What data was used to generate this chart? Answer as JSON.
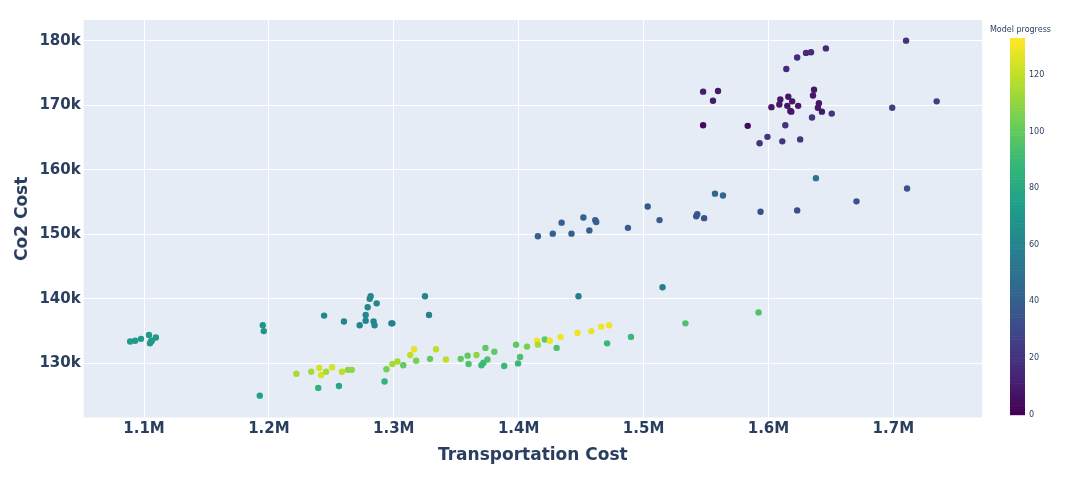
{
  "chart_data": {
    "type": "scatter",
    "xlabel": "Transportation Cost",
    "ylabel": "Co2 Cost",
    "clabel": "Model progress",
    "marker": "circle",
    "grid": true,
    "xlim": [
      1051700,
      1771000
    ],
    "ylim": [
      121600,
      183200
    ],
    "xticks": [
      {
        "value": 1100000,
        "label": "1.1M"
      },
      {
        "value": 1200000,
        "label": "1.2M"
      },
      {
        "value": 1300000,
        "label": "1.3M"
      },
      {
        "value": 1400000,
        "label": "1.4M"
      },
      {
        "value": 1500000,
        "label": "1.5M"
      },
      {
        "value": 1600000,
        "label": "1.6M"
      },
      {
        "value": 1700000,
        "label": "1.7M"
      }
    ],
    "yticks": [
      {
        "value": 130000,
        "label": "130k"
      },
      {
        "value": 140000,
        "label": "140k"
      },
      {
        "value": 150000,
        "label": "150k"
      },
      {
        "value": 160000,
        "label": "160k"
      },
      {
        "value": 170000,
        "label": "170k"
      },
      {
        "value": 180000,
        "label": "180k"
      }
    ],
    "clim": [
      0,
      133
    ],
    "cticks": [
      0,
      20,
      40,
      60,
      80,
      100,
      120
    ],
    "series": [
      {
        "x": [
          1088900,
          1092900,
          1097600,
          1104000,
          1104800,
          1106300,
          1109500,
          1105500,
          1195100,
          1195900,
          1192700,
          1244200,
          1260100,
          1272700,
          1277500,
          1277500,
          1279100,
          1280700,
          1281500,
          1286300,
          1283800,
          1284600,
          1298100,
          1298900,
          1325000,
          1328200,
          1222000,
          1233900,
          1240300,
          1241800,
          1245800,
          1250600,
          1239500,
          1256100,
          1258500,
          1263300,
          1266400,
          1292600,
          1294100,
          1298900,
          1302900,
          1307600,
          1313200,
          1316300,
          1317900,
          1329000,
          1333800,
          1341700,
          1353600,
          1359100,
          1359900,
          1366200,
          1370200,
          1371800,
          1373400,
          1375000,
          1380500,
          1388400,
          1397900,
          1399500,
          1401100,
          1406700,
          1414600,
          1415400,
          1420900,
          1424900,
          1430400,
          1433600,
          1447100,
          1458200,
          1466100,
          1472400,
          1470800,
          1489900,
          1533500,
          1592100,
          1447900,
          1515200,
          1415400,
          1427300,
          1434400,
          1442300,
          1451800,
          1456600,
          1461300,
          1462100,
          1487500,
          1503300,
          1512800,
          1542200,
          1543000,
          1548500,
          1593700,
          1623000,
          1638000,
          1557200,
          1563600,
          1670500,
          1711000,
          1710200,
          1646000,
          1634100,
          1630100,
          1623000,
          1614300,
          1547700,
          1559600,
          1555600,
          1547700,
          1583400,
          1602400,
          1609500,
          1608700,
          1615900,
          1619000,
          1615100,
          1617500,
          1618300,
          1623800,
          1636500,
          1635700,
          1640400,
          1639600,
          1642800,
          1650700,
          1634900,
          1613500,
          1599200,
          1592900,
          1611100,
          1625400,
          1699100,
          1734700
        ],
        "values": [
          133400,
          133500,
          133800,
          134400,
          133100,
          133500,
          134000,
          133400,
          135900,
          135000,
          125000,
          137400,
          136500,
          135900,
          137500,
          136600,
          138700,
          140000,
          140400,
          139300,
          136500,
          135900,
          136200,
          136200,
          140400,
          137500,
          128400,
          128700,
          129300,
          128200,
          128700,
          129400,
          126200,
          126500,
          128700,
          129000,
          129000,
          127200,
          129100,
          129900,
          130300,
          129700,
          131300,
          132200,
          130400,
          130700,
          132200,
          130600,
          130700,
          131200,
          129900,
          131300,
          129700,
          130100,
          132400,
          130600,
          131800,
          129600,
          132900,
          130000,
          131000,
          132600,
          133500,
          132900,
          133700,
          133500,
          132400,
          134100,
          134700,
          135000,
          135700,
          135900,
          133100,
          134100,
          136200,
          137900,
          140400,
          141800,
          149700,
          150100,
          151800,
          150100,
          152600,
          150600,
          152200,
          151900,
          151000,
          154300,
          152200,
          152800,
          153100,
          152500,
          153500,
          153700,
          158700,
          156300,
          156000,
          155100,
          157100,
          180000,
          178800,
          178200,
          178100,
          177400,
          175600,
          172100,
          172200,
          170700,
          166900,
          166800,
          169700,
          170900,
          170100,
          171300,
          170600,
          169900,
          169100,
          169000,
          169900,
          172400,
          171500,
          170300,
          169600,
          169000,
          168700,
          168100,
          166900,
          165100,
          164100,
          164400,
          164700,
          169600,
          170600
        ],
        "cvalues": [
          72,
          72,
          72,
          72,
          72,
          72,
          72,
          72,
          70,
          68,
          75,
          62,
          60,
          60,
          62,
          60,
          62,
          62,
          62,
          60,
          60,
          60,
          58,
          58,
          62,
          58,
          115,
          115,
          125,
          125,
          115,
          125,
          85,
          80,
          120,
          110,
          110,
          85,
          105,
          115,
          115,
          100,
          120,
          128,
          105,
          100,
          120,
          120,
          100,
          100,
          95,
          110,
          90,
          90,
          100,
          95,
          100,
          90,
          100,
          90,
          95,
          105,
          130,
          115,
          100,
          130,
          95,
          130,
          130,
          128,
          130,
          130,
          90,
          90,
          95,
          95,
          55,
          55,
          40,
          40,
          40,
          40,
          40,
          40,
          40,
          40,
          38,
          38,
          38,
          35,
          35,
          35,
          32,
          32,
          50,
          45,
          45,
          35,
          35,
          20,
          15,
          15,
          15,
          15,
          15,
          10,
          10,
          10,
          3,
          3,
          8,
          8,
          8,
          8,
          8,
          8,
          8,
          8,
          8,
          8,
          8,
          8,
          8,
          8,
          20,
          20,
          20,
          20,
          20,
          20,
          20,
          25,
          25
        ]
      }
    ]
  }
}
